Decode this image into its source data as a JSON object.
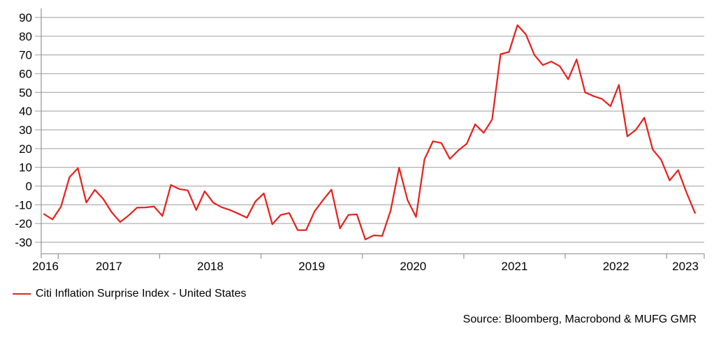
{
  "chart_data": {
    "type": "line",
    "title": "",
    "xlabel": "",
    "ylabel": "",
    "grid": "horizontal",
    "legend_position": "bottom-left",
    "y_ticks": [
      90,
      80,
      70,
      60,
      50,
      40,
      30,
      20,
      10,
      0,
      -10,
      -20,
      -30
    ],
    "ylim": [
      -36,
      95
    ],
    "x_tick_years": [
      2016,
      2017,
      2018,
      2019,
      2020,
      2021,
      2022,
      2023
    ],
    "x_start": "2016-11",
    "x_end": "2023-04",
    "frequency": "monthly",
    "series": [
      {
        "name": "Citi Inflation Surprise Index - United States",
        "color": "#e42320",
        "values": [
          -15.0,
          -17.8,
          -11.0,
          4.7,
          9.5,
          -8.8,
          -2.0,
          -6.9,
          -14.0,
          -19.2,
          -15.7,
          -11.5,
          -11.4,
          -10.9,
          -16.0,
          0.6,
          -1.6,
          -2.3,
          -12.8,
          -2.8,
          -8.8,
          -11.3,
          -12.8,
          -14.8,
          -16.9,
          -8.2,
          -3.9,
          -20.4,
          -15.4,
          -14.4,
          -23.5,
          -23.5,
          -13.5,
          -7.5,
          -1.9,
          -22.6,
          -15.4,
          -15.1,
          -28.5,
          -26.3,
          -26.6,
          -13.0,
          9.8,
          -7.5,
          -16.5,
          14.3,
          23.9,
          23.0,
          14.5,
          19.0,
          22.6,
          33.0,
          28.4,
          35.5,
          70.4,
          71.6,
          85.9,
          80.9,
          70.0,
          64.6,
          66.5,
          64.0,
          57.0,
          67.6,
          50.0,
          48.0,
          46.5,
          42.6,
          54.0,
          26.5,
          30.0,
          36.5,
          19.5,
          14.0,
          3.0,
          8.5,
          -3.5,
          -14.4
        ]
      }
    ]
  },
  "source_note": "Source: Bloomberg, Macrobond & MUFG GMR",
  "colors": {
    "line": "#e42320",
    "grid": "#b0b0b0",
    "axis": "#9c9c9c",
    "text": "#000000",
    "background": "#ffffff"
  }
}
